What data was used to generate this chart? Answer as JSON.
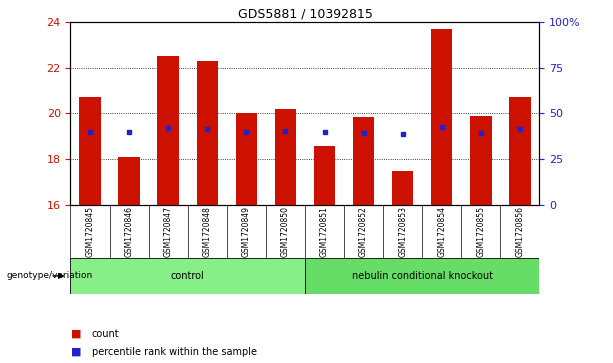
{
  "title": "GDS5881 / 10392815",
  "samples": [
    "GSM1720845",
    "GSM1720846",
    "GSM1720847",
    "GSM1720848",
    "GSM1720849",
    "GSM1720850",
    "GSM1720851",
    "GSM1720852",
    "GSM1720853",
    "GSM1720854",
    "GSM1720855",
    "GSM1720856"
  ],
  "bar_top": [
    20.7,
    18.1,
    22.5,
    22.3,
    20.0,
    20.2,
    18.6,
    19.85,
    17.5,
    23.7,
    19.9,
    20.7
  ],
  "bar_bottom": 16.0,
  "percentile_values": [
    19.2,
    19.2,
    19.35,
    19.3,
    19.2,
    19.25,
    19.2,
    19.15,
    19.1,
    19.4,
    19.15,
    19.3
  ],
  "bar_color": "#cc1100",
  "percentile_color": "#2222cc",
  "ylim": [
    16,
    24
  ],
  "yticks_left": [
    16,
    18,
    20,
    22,
    24
  ],
  "yticks_right": [
    0,
    25,
    50,
    75,
    100
  ],
  "grid_values": [
    18,
    20,
    22
  ],
  "groups": [
    {
      "label": "control",
      "start": 0,
      "end": 6,
      "color": "#88ee88"
    },
    {
      "label": "nebulin conditional knockout",
      "start": 6,
      "end": 12,
      "color": "#66dd66"
    }
  ],
  "group_row_label": "genotype/variation",
  "legend_count_label": "count",
  "legend_percentile_label": "percentile rank within the sample",
  "bg_color": "#ffffff",
  "tick_label_color_left": "#cc1100",
  "tick_label_color_right": "#2222cc",
  "bar_width": 0.55,
  "xticklabel_bg": "#cccccc"
}
